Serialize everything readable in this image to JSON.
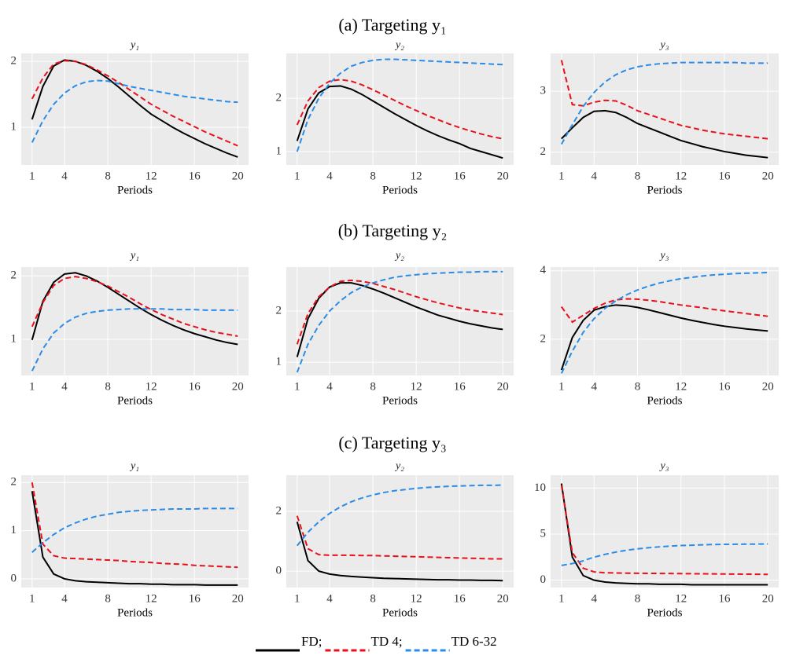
{
  "chart_data": [
    {
      "type": "line",
      "section_title": "(a) Targeting y₁",
      "title": "y₁",
      "xlabel": "Periods",
      "x": [
        1,
        2,
        3,
        4,
        5,
        6,
        7,
        8,
        9,
        10,
        11,
        12,
        13,
        14,
        15,
        16,
        17,
        18,
        19,
        20
      ],
      "xlim": [
        0,
        21
      ],
      "xticks": [
        1,
        4,
        8,
        12,
        16,
        20
      ],
      "ylim": [
        0.43,
        2.12
      ],
      "yticks": [
        1,
        2
      ],
      "grid": true,
      "series": [
        {
          "name": "FD;",
          "color": "#000000",
          "line_style": "solid",
          "values": [
            1.12,
            1.62,
            1.93,
            2.02,
            2.0,
            1.94,
            1.85,
            1.74,
            1.61,
            1.47,
            1.33,
            1.2,
            1.1,
            1.0,
            0.91,
            0.83,
            0.75,
            0.68,
            0.61,
            0.55
          ]
        },
        {
          "name": "TD 4;",
          "color": "#e8101b",
          "line_style": "dashed",
          "values": [
            1.43,
            1.75,
            1.96,
            2.01,
            2.0,
            1.95,
            1.87,
            1.78,
            1.68,
            1.57,
            1.46,
            1.35,
            1.26,
            1.17,
            1.09,
            1.01,
            0.93,
            0.86,
            0.79,
            0.72
          ]
        },
        {
          "name": "TD 6-32",
          "color": "#2b8ce8",
          "line_style": "dashed",
          "values": [
            0.77,
            1.1,
            1.35,
            1.52,
            1.63,
            1.69,
            1.71,
            1.7,
            1.66,
            1.62,
            1.59,
            1.56,
            1.53,
            1.5,
            1.47,
            1.45,
            1.43,
            1.41,
            1.39,
            1.38
          ]
        }
      ]
    },
    {
      "type": "line",
      "title": "y₂",
      "xlabel": "Periods",
      "x": [
        1,
        2,
        3,
        4,
        5,
        6,
        7,
        8,
        9,
        10,
        11,
        12,
        13,
        14,
        15,
        16,
        17,
        18,
        19,
        20
      ],
      "xlim": [
        0,
        21
      ],
      "xticks": [
        1,
        4,
        8,
        12,
        16,
        20
      ],
      "ylim": [
        0.75,
        2.84
      ],
      "yticks": [
        1,
        2
      ],
      "grid": true,
      "series": [
        {
          "name": "FD;",
          "color": "#000000",
          "line_style": "solid",
          "values": [
            1.2,
            1.8,
            2.1,
            2.22,
            2.23,
            2.17,
            2.07,
            1.95,
            1.83,
            1.71,
            1.6,
            1.49,
            1.39,
            1.3,
            1.22,
            1.15,
            1.06,
            1.0,
            0.94,
            0.88
          ]
        },
        {
          "name": "TD 4;",
          "color": "#e8101b",
          "line_style": "dashed",
          "values": [
            1.5,
            1.95,
            2.2,
            2.32,
            2.35,
            2.32,
            2.25,
            2.16,
            2.06,
            1.96,
            1.86,
            1.77,
            1.68,
            1.6,
            1.52,
            1.45,
            1.39,
            1.33,
            1.28,
            1.24
          ]
        },
        {
          "name": "TD 6-32",
          "color": "#2b8ce8",
          "line_style": "dashed",
          "values": [
            1.0,
            1.6,
            2.0,
            2.28,
            2.47,
            2.6,
            2.67,
            2.71,
            2.73,
            2.73,
            2.72,
            2.71,
            2.7,
            2.69,
            2.68,
            2.67,
            2.66,
            2.65,
            2.64,
            2.63
          ]
        }
      ]
    },
    {
      "type": "line",
      "title": "y₃",
      "xlabel": "Periods",
      "x": [
        1,
        2,
        3,
        4,
        5,
        6,
        7,
        8,
        9,
        10,
        11,
        12,
        13,
        14,
        15,
        16,
        17,
        18,
        19,
        20
      ],
      "xlim": [
        0,
        21
      ],
      "xticks": [
        1,
        4,
        8,
        12,
        16,
        20
      ],
      "ylim": [
        1.79,
        3.62
      ],
      "yticks": [
        2,
        3
      ],
      "grid": true,
      "series": [
        {
          "name": "FD;",
          "color": "#000000",
          "line_style": "solid",
          "values": [
            2.22,
            2.4,
            2.57,
            2.67,
            2.68,
            2.65,
            2.57,
            2.47,
            2.4,
            2.33,
            2.26,
            2.19,
            2.14,
            2.09,
            2.05,
            2.01,
            1.98,
            1.95,
            1.93,
            1.91
          ]
        },
        {
          "name": "TD 4;",
          "color": "#e8101b",
          "line_style": "dashed",
          "values": [
            3.51,
            2.78,
            2.76,
            2.82,
            2.85,
            2.84,
            2.77,
            2.68,
            2.62,
            2.56,
            2.5,
            2.44,
            2.4,
            2.36,
            2.33,
            2.3,
            2.28,
            2.26,
            2.24,
            2.22
          ]
        },
        {
          "name": "TD 6-32",
          "color": "#2b8ce8",
          "line_style": "dashed",
          "values": [
            2.13,
            2.45,
            2.75,
            2.98,
            3.15,
            3.27,
            3.35,
            3.4,
            3.43,
            3.45,
            3.46,
            3.47,
            3.47,
            3.47,
            3.47,
            3.47,
            3.47,
            3.46,
            3.46,
            3.46
          ]
        }
      ]
    },
    {
      "type": "line",
      "section_title": "(b) Targeting y₂",
      "title": "y₁",
      "xlabel": "Periods",
      "x": [
        1,
        2,
        3,
        4,
        5,
        6,
        7,
        8,
        9,
        10,
        11,
        12,
        13,
        14,
        15,
        16,
        17,
        18,
        19,
        20
      ],
      "xlim": [
        0,
        21
      ],
      "xticks": [
        1,
        4,
        8,
        12,
        16,
        20
      ],
      "ylim": [
        0.43,
        2.14
      ],
      "yticks": [
        1,
        2
      ],
      "grid": true,
      "series": [
        {
          "name": "FD;",
          "color": "#000000",
          "line_style": "solid",
          "values": [
            0.99,
            1.6,
            1.9,
            2.03,
            2.05,
            2.0,
            1.92,
            1.82,
            1.71,
            1.6,
            1.49,
            1.39,
            1.3,
            1.22,
            1.15,
            1.09,
            1.04,
            0.99,
            0.95,
            0.92
          ]
        },
        {
          "name": "TD 4;",
          "color": "#e8101b",
          "line_style": "dashed",
          "values": [
            1.2,
            1.58,
            1.85,
            1.96,
            1.99,
            1.96,
            1.91,
            1.84,
            1.75,
            1.66,
            1.56,
            1.47,
            1.39,
            1.32,
            1.25,
            1.2,
            1.15,
            1.11,
            1.08,
            1.05
          ]
        },
        {
          "name": "TD 6-32",
          "color": "#2b8ce8",
          "line_style": "dashed",
          "values": [
            0.5,
            0.85,
            1.1,
            1.25,
            1.35,
            1.41,
            1.44,
            1.46,
            1.47,
            1.48,
            1.48,
            1.48,
            1.48,
            1.47,
            1.47,
            1.47,
            1.46,
            1.46,
            1.46,
            1.46
          ]
        }
      ]
    },
    {
      "type": "line",
      "title": "y₂",
      "xlabel": "Periods",
      "x": [
        1,
        2,
        3,
        4,
        5,
        6,
        7,
        8,
        9,
        10,
        11,
        12,
        13,
        14,
        15,
        16,
        17,
        18,
        19,
        20
      ],
      "xlim": [
        0,
        21
      ],
      "xticks": [
        1,
        4,
        8,
        12,
        16,
        20
      ],
      "ylim": [
        0.74,
        2.86
      ],
      "yticks": [
        1,
        2
      ],
      "grid": true,
      "series": [
        {
          "name": "FD;",
          "color": "#000000",
          "line_style": "solid",
          "values": [
            1.1,
            1.85,
            2.25,
            2.47,
            2.55,
            2.55,
            2.5,
            2.43,
            2.35,
            2.26,
            2.17,
            2.08,
            2.0,
            1.92,
            1.86,
            1.8,
            1.75,
            1.71,
            1.67,
            1.64
          ]
        },
        {
          "name": "TD 4;",
          "color": "#e8101b",
          "line_style": "dashed",
          "values": [
            1.35,
            1.95,
            2.28,
            2.47,
            2.58,
            2.6,
            2.58,
            2.54,
            2.48,
            2.42,
            2.35,
            2.28,
            2.22,
            2.16,
            2.11,
            2.06,
            2.02,
            1.99,
            1.96,
            1.93
          ]
        },
        {
          "name": "TD 6-32",
          "color": "#2b8ce8",
          "line_style": "dashed",
          "values": [
            0.8,
            1.35,
            1.72,
            2.0,
            2.2,
            2.36,
            2.47,
            2.55,
            2.61,
            2.66,
            2.69,
            2.71,
            2.73,
            2.74,
            2.75,
            2.76,
            2.76,
            2.77,
            2.77,
            2.77
          ]
        }
      ]
    },
    {
      "type": "line",
      "title": "y₃",
      "xlabel": "Periods",
      "x": [
        1,
        2,
        3,
        4,
        5,
        6,
        7,
        8,
        9,
        10,
        11,
        12,
        13,
        14,
        15,
        16,
        17,
        18,
        19,
        20
      ],
      "xlim": [
        0,
        21
      ],
      "xticks": [
        1,
        4,
        8,
        12,
        16,
        20
      ],
      "ylim": [
        0.94,
        4.11
      ],
      "yticks": [
        2,
        4
      ],
      "grid": true,
      "series": [
        {
          "name": "FD;",
          "color": "#000000",
          "line_style": "solid",
          "values": [
            1.1,
            2.05,
            2.55,
            2.85,
            2.95,
            3.0,
            2.98,
            2.93,
            2.86,
            2.78,
            2.7,
            2.62,
            2.55,
            2.49,
            2.43,
            2.38,
            2.34,
            2.3,
            2.27,
            2.24
          ]
        },
        {
          "name": "TD 4;",
          "color": "#e8101b",
          "line_style": "dashed",
          "values": [
            2.95,
            2.5,
            2.7,
            2.9,
            3.05,
            3.15,
            3.18,
            3.17,
            3.14,
            3.1,
            3.05,
            3.0,
            2.96,
            2.92,
            2.87,
            2.83,
            2.79,
            2.75,
            2.71,
            2.67
          ]
        },
        {
          "name": "TD 6-32",
          "color": "#2b8ce8",
          "line_style": "dashed",
          "values": [
            1.0,
            1.65,
            2.2,
            2.6,
            2.9,
            3.12,
            3.3,
            3.44,
            3.55,
            3.64,
            3.71,
            3.77,
            3.81,
            3.85,
            3.88,
            3.9,
            3.92,
            3.93,
            3.94,
            3.95
          ]
        }
      ]
    },
    {
      "type": "line",
      "section_title": "(c) Targeting y₃",
      "title": "y₁",
      "xlabel": "Periods",
      "x": [
        1,
        2,
        3,
        4,
        5,
        6,
        7,
        8,
        9,
        10,
        11,
        12,
        13,
        14,
        15,
        16,
        17,
        18,
        19,
        20
      ],
      "xlim": [
        0,
        21
      ],
      "xticks": [
        1,
        4,
        8,
        12,
        16,
        20
      ],
      "ylim": [
        -0.18,
        2.15
      ],
      "yticks": [
        0,
        1,
        2
      ],
      "grid": true,
      "series": [
        {
          "name": "FD;",
          "color": "#000000",
          "line_style": "solid",
          "values": [
            1.82,
            0.45,
            0.1,
            0.0,
            -0.04,
            -0.06,
            -0.07,
            -0.08,
            -0.09,
            -0.1,
            -0.1,
            -0.11,
            -0.11,
            -0.12,
            -0.12,
            -0.12,
            -0.13,
            -0.13,
            -0.13,
            -0.13
          ]
        },
        {
          "name": "TD 4;",
          "color": "#e8101b",
          "line_style": "dashed",
          "values": [
            2.0,
            0.72,
            0.48,
            0.43,
            0.42,
            0.41,
            0.4,
            0.39,
            0.38,
            0.36,
            0.35,
            0.34,
            0.32,
            0.31,
            0.3,
            0.28,
            0.27,
            0.26,
            0.25,
            0.24
          ]
        },
        {
          "name": "TD 6-32",
          "color": "#2b8ce8",
          "line_style": "dashed",
          "values": [
            0.55,
            0.75,
            0.92,
            1.06,
            1.16,
            1.24,
            1.3,
            1.34,
            1.38,
            1.4,
            1.42,
            1.43,
            1.44,
            1.45,
            1.45,
            1.45,
            1.46,
            1.46,
            1.46,
            1.46
          ]
        }
      ]
    },
    {
      "type": "line",
      "title": "y₂",
      "xlabel": "Periods",
      "x": [
        1,
        2,
        3,
        4,
        5,
        6,
        7,
        8,
        9,
        10,
        11,
        12,
        13,
        14,
        15,
        16,
        17,
        18,
        19,
        20
      ],
      "xlim": [
        0,
        21
      ],
      "xticks": [
        1,
        4,
        8,
        12,
        16,
        20
      ],
      "ylim": [
        -0.55,
        3.21
      ],
      "yticks": [
        0,
        2
      ],
      "grid": true,
      "series": [
        {
          "name": "FD;",
          "color": "#000000",
          "line_style": "solid",
          "values": [
            1.65,
            0.35,
            0.0,
            -0.1,
            -0.15,
            -0.18,
            -0.2,
            -0.22,
            -0.24,
            -0.25,
            -0.26,
            -0.27,
            -0.28,
            -0.29,
            -0.29,
            -0.3,
            -0.3,
            -0.31,
            -0.31,
            -0.32
          ]
        },
        {
          "name": "TD 4;",
          "color": "#e8101b",
          "line_style": "dashed",
          "values": [
            1.85,
            0.75,
            0.55,
            0.53,
            0.53,
            0.53,
            0.52,
            0.52,
            0.51,
            0.5,
            0.49,
            0.48,
            0.47,
            0.46,
            0.45,
            0.44,
            0.43,
            0.42,
            0.41,
            0.41
          ]
        },
        {
          "name": "TD 6-32",
          "color": "#2b8ce8",
          "line_style": "dashed",
          "values": [
            0.85,
            1.3,
            1.65,
            1.93,
            2.15,
            2.32,
            2.45,
            2.55,
            2.63,
            2.69,
            2.73,
            2.77,
            2.8,
            2.82,
            2.84,
            2.85,
            2.86,
            2.87,
            2.87,
            2.88
          ]
        }
      ]
    },
    {
      "type": "line",
      "title": "y₃",
      "xlabel": "Periods",
      "x": [
        1,
        2,
        3,
        4,
        5,
        6,
        7,
        8,
        9,
        10,
        11,
        12,
        13,
        14,
        15,
        16,
        17,
        18,
        19,
        20
      ],
      "xlim": [
        0,
        21
      ],
      "xticks": [
        1,
        4,
        8,
        12,
        16,
        20
      ],
      "ylim": [
        -0.8,
        11.4
      ],
      "yticks": [
        0,
        5,
        10
      ],
      "grid": true,
      "series": [
        {
          "name": "FD;",
          "color": "#000000",
          "line_style": "solid",
          "values": [
            10.5,
            2.5,
            0.5,
            0.0,
            -0.2,
            -0.3,
            -0.35,
            -0.4,
            -0.4,
            -0.45,
            -0.45,
            -0.45,
            -0.5,
            -0.5,
            -0.5,
            -0.5,
            -0.5,
            -0.5,
            -0.5,
            -0.5
          ]
        },
        {
          "name": "TD 4;",
          "color": "#e8101b",
          "line_style": "dashed",
          "values": [
            10.3,
            3.0,
            1.3,
            0.9,
            0.8,
            0.78,
            0.76,
            0.75,
            0.74,
            0.73,
            0.72,
            0.71,
            0.7,
            0.69,
            0.68,
            0.67,
            0.66,
            0.65,
            0.64,
            0.63
          ]
        },
        {
          "name": "TD 6-32",
          "color": "#2b8ce8",
          "line_style": "dashed",
          "values": [
            1.6,
            1.8,
            2.1,
            2.5,
            2.8,
            3.05,
            3.25,
            3.4,
            3.52,
            3.62,
            3.7,
            3.76,
            3.8,
            3.84,
            3.87,
            3.89,
            3.9,
            3.91,
            3.92,
            3.93
          ]
        }
      ]
    }
  ]
}
